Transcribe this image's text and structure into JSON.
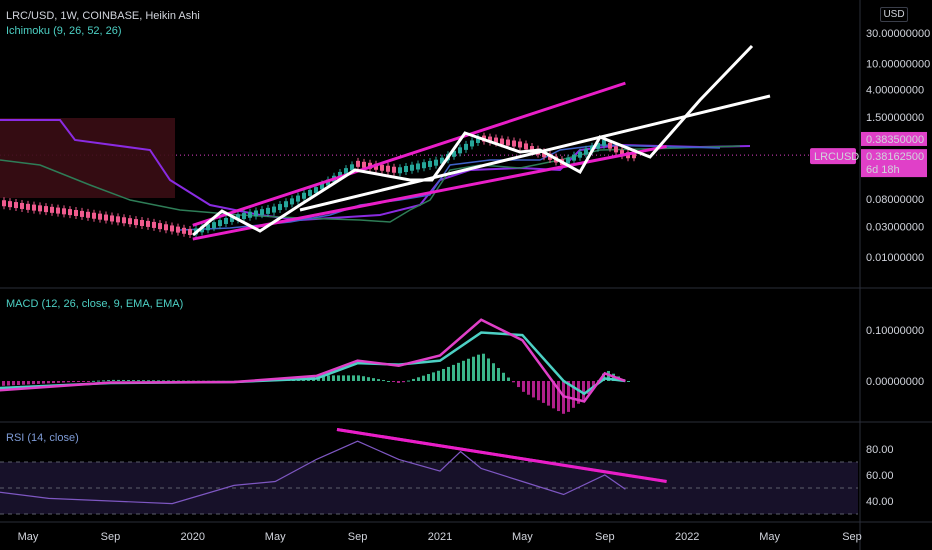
{
  "legend": {
    "main": "LRC/USD, 1W, COINBASE, Heikin Ashi",
    "ichimoku": "Ichimoku (9, 26, 52, 26)",
    "macd": "MACD (12, 26, close, 9, EMA, EMA)",
    "rsi": "RSI (14, close)"
  },
  "currency_badge": "USD",
  "price_axis": {
    "scale": "log",
    "labels": [
      "30.00000000",
      "10.00000000",
      "4.00000000",
      "1.50000000",
      "0.08000000",
      "0.03000000",
      "0.01000000"
    ],
    "values": [
      30,
      10,
      4,
      1.5,
      0.08,
      0.03,
      0.01
    ]
  },
  "price_tags": [
    {
      "label": "0.38350000",
      "value": 0.3835,
      "color": "#e040c8"
    },
    {
      "label": "0.38162500",
      "sub": "6d 18h",
      "value": 0.381625,
      "color": "#e040c8"
    }
  ],
  "symbol_tag": "LRCUSD",
  "macd_axis": {
    "labels": [
      "0.10000000",
      "0.00000000"
    ],
    "values": [
      0.1,
      0.0
    ]
  },
  "rsi_axis": {
    "labels": [
      "80.00",
      "60.00",
      "40.00"
    ],
    "values": [
      80,
      60,
      40
    ]
  },
  "time_axis": {
    "labels": [
      "May",
      "Sep",
      "2020",
      "May",
      "Sep",
      "2021",
      "May",
      "Sep",
      "2022",
      "May",
      "Sep"
    ],
    "dates": [
      "2019-05",
      "2019-09",
      "2020-01",
      "2020-05",
      "2020-09",
      "2021-01",
      "2021-05",
      "2021-09",
      "2022-01",
      "2022-05",
      "2022-09"
    ]
  },
  "colors": {
    "magenta": "#e91ec8",
    "white": "#ffffff",
    "ichimoku_purple": "#8a2be2",
    "ichimoku_green": "#2e7d57",
    "ichimoku_blue": "#3f63c8",
    "ichimoku_red_fill": "#3a0d14",
    "candle_up": "#26a69a",
    "candle_down": "#ef5b8e",
    "macd_line": "#e040c8",
    "signal_line": "#4dd0c4",
    "hist_up": "#3bb58a",
    "hist_down": "#b0208a",
    "rsi_line": "#7e57c2",
    "rsi_band": "#2a1f4a"
  },
  "chart_data": {
    "type": "line",
    "price": {
      "x": [
        "2019-03",
        "2019-05",
        "2019-07",
        "2019-09",
        "2019-11",
        "2020-01",
        "2020-03",
        "2020-05",
        "2020-07",
        "2020-09",
        "2020-11",
        "2021-01",
        "2021-03",
        "2021-05",
        "2021-07",
        "2021-09",
        "2021-10"
      ],
      "close": [
        0.075,
        0.06,
        0.05,
        0.04,
        0.032,
        0.024,
        0.04,
        0.055,
        0.11,
        0.28,
        0.22,
        0.3,
        0.7,
        0.55,
        0.29,
        0.6,
        0.38
      ]
    },
    "macd": {
      "x": [
        "2019-03",
        "2019-09",
        "2020-03",
        "2020-07",
        "2020-09",
        "2020-11",
        "2021-01",
        "2021-03",
        "2021-05",
        "2021-07",
        "2021-08",
        "2021-09",
        "2021-10"
      ],
      "macd": [
        -0.02,
        -0.003,
        -0.002,
        0.01,
        0.04,
        0.03,
        0.05,
        0.12,
        0.08,
        -0.03,
        -0.04,
        0.015,
        0.0
      ],
      "signal": [
        -0.015,
        -0.004,
        -0.002,
        0.005,
        0.035,
        0.032,
        0.04,
        0.095,
        0.09,
        0.0,
        -0.025,
        0.005,
        0.0
      ]
    },
    "rsi": {
      "x": [
        "2019-03",
        "2019-06",
        "2019-09",
        "2019-12",
        "2020-03",
        "2020-05",
        "2020-07",
        "2020-09",
        "2020-11",
        "2021-01",
        "2021-02",
        "2021-03",
        "2021-05",
        "2021-07",
        "2021-09",
        "2021-10"
      ],
      "values": [
        48,
        42,
        40,
        38,
        52,
        55,
        72,
        86,
        72,
        63,
        78,
        65,
        55,
        45,
        60,
        49
      ]
    },
    "drawings": [
      {
        "kind": "magenta-upper-channel",
        "from": [
          "2020-01",
          0.031
        ],
        "to": [
          "2021-10",
          5.0
        ]
      },
      {
        "kind": "magenta-lower-channel",
        "from": [
          "2020-01",
          0.019
        ],
        "to": [
          "2021-12",
          0.52
        ]
      },
      {
        "kind": "rsi-trendline",
        "from": [
          "2020-08",
          95
        ],
        "to": [
          "2021-12",
          55
        ]
      }
    ]
  }
}
